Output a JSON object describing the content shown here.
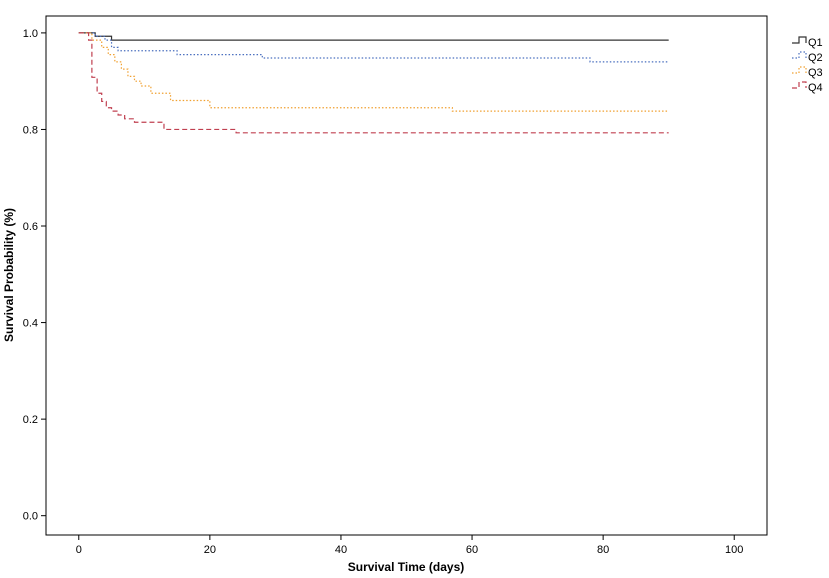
{
  "chart_data": {
    "type": "line",
    "title": "",
    "xlabel": "Survival Time (days)",
    "ylabel": "Survival Probability (%)",
    "xlim": [
      -5,
      105
    ],
    "ylim": [
      -0.04,
      1.035
    ],
    "xticks": [
      0,
      20,
      40,
      60,
      80,
      100
    ],
    "xtick_labels": [
      "0",
      "20",
      "40",
      "60",
      "80",
      "100"
    ],
    "yticks": [
      0.0,
      0.2,
      0.4,
      0.6,
      0.8,
      1.0
    ],
    "ytick_labels": [
      "0.0",
      "0.2",
      "0.4",
      "0.6",
      "0.8",
      "1.0"
    ],
    "grid": false,
    "legend": "top-right",
    "step": true,
    "series": [
      {
        "name": "Q1",
        "color": "#333333",
        "dash": "solid",
        "x": [
          0,
          2.5,
          5,
          90
        ],
        "y": [
          1.0,
          0.993,
          0.985,
          0.985
        ]
      },
      {
        "name": "Q2",
        "color": "#4a6fbf",
        "dash": "dotted",
        "x": [
          0,
          2.5,
          4,
          5,
          6,
          15,
          28,
          78,
          90
        ],
        "y": [
          1.0,
          0.993,
          0.985,
          0.97,
          0.963,
          0.955,
          0.948,
          0.94,
          0.94
        ]
      },
      {
        "name": "Q3",
        "color": "#f0a030",
        "dash": "dotted",
        "x": [
          0,
          2,
          3.5,
          4.5,
          5.5,
          6.5,
          7.5,
          8.5,
          9.5,
          11,
          14,
          20,
          57,
          90
        ],
        "y": [
          1.0,
          0.985,
          0.97,
          0.955,
          0.94,
          0.925,
          0.91,
          0.9,
          0.89,
          0.875,
          0.86,
          0.845,
          0.838,
          0.838
        ]
      },
      {
        "name": "Q4",
        "color": "#c04050",
        "dash": "dashed",
        "x": [
          0,
          1.5,
          2,
          2.8,
          3.5,
          4.2,
          5,
          6,
          7,
          8.5,
          13,
          24,
          90
        ],
        "y": [
          1.0,
          0.985,
          0.908,
          0.875,
          0.858,
          0.845,
          0.838,
          0.83,
          0.822,
          0.815,
          0.8,
          0.793,
          0.793
        ]
      }
    ]
  }
}
